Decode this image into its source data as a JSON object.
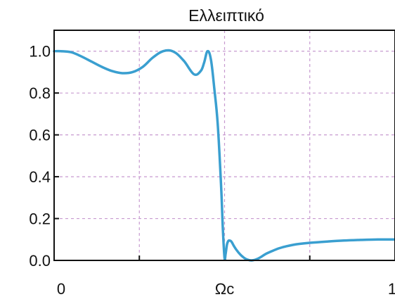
{
  "chart_data": {
    "type": "line",
    "title": "Ελλειπτικό",
    "xlabel": "",
    "ylabel": "",
    "xlim": [
      0,
      1
    ],
    "ylim": [
      0,
      1.1
    ],
    "grid": true,
    "x_ticks": [
      {
        "value": 0,
        "label": "0"
      },
      {
        "value": 0.25,
        "label": ""
      },
      {
        "value": 0.5,
        "label": "Ωc"
      },
      {
        "value": 0.75,
        "label": ""
      },
      {
        "value": 1,
        "label": "1"
      }
    ],
    "y_ticks": [
      {
        "value": 0.0,
        "label": "0.0"
      },
      {
        "value": 0.2,
        "label": "0.2"
      },
      {
        "value": 0.4,
        "label": "0.4"
      },
      {
        "value": 0.6,
        "label": "0.6"
      },
      {
        "value": 0.8,
        "label": "0.8"
      },
      {
        "value": 1.0,
        "label": "1.0"
      }
    ],
    "series": [
      {
        "color": "#3a9fd0",
        "x": [
          0,
          0.02,
          0.05,
          0.08,
          0.11,
          0.14,
          0.17,
          0.2,
          0.23,
          0.26,
          0.29,
          0.32,
          0.35,
          0.38,
          0.41,
          0.43,
          0.44,
          0.45,
          0.46,
          0.47,
          0.48,
          0.49,
          0.495,
          0.5,
          0.503,
          0.507,
          0.51,
          0.513,
          0.518,
          0.522,
          0.527,
          0.535,
          0.545,
          0.555,
          0.565,
          0.58,
          0.6,
          0.62,
          0.64,
          0.66,
          0.68,
          0.7,
          0.72,
          0.75,
          0.8,
          0.85,
          0.9,
          0.95,
          1.0
        ],
        "y": [
          1.0,
          1.0,
          0.995,
          0.975,
          0.95,
          0.925,
          0.905,
          0.895,
          0.9,
          0.925,
          0.97,
          1.0,
          0.998,
          0.955,
          0.89,
          0.905,
          0.945,
          1.0,
          0.96,
          0.82,
          0.65,
          0.35,
          0.15,
          0.01,
          0.03,
          0.075,
          0.09,
          0.095,
          0.093,
          0.085,
          0.07,
          0.05,
          0.03,
          0.015,
          0.005,
          0.0,
          0.01,
          0.03,
          0.045,
          0.058,
          0.067,
          0.074,
          0.079,
          0.084,
          0.09,
          0.095,
          0.098,
          0.1,
          0.1
        ]
      }
    ]
  }
}
